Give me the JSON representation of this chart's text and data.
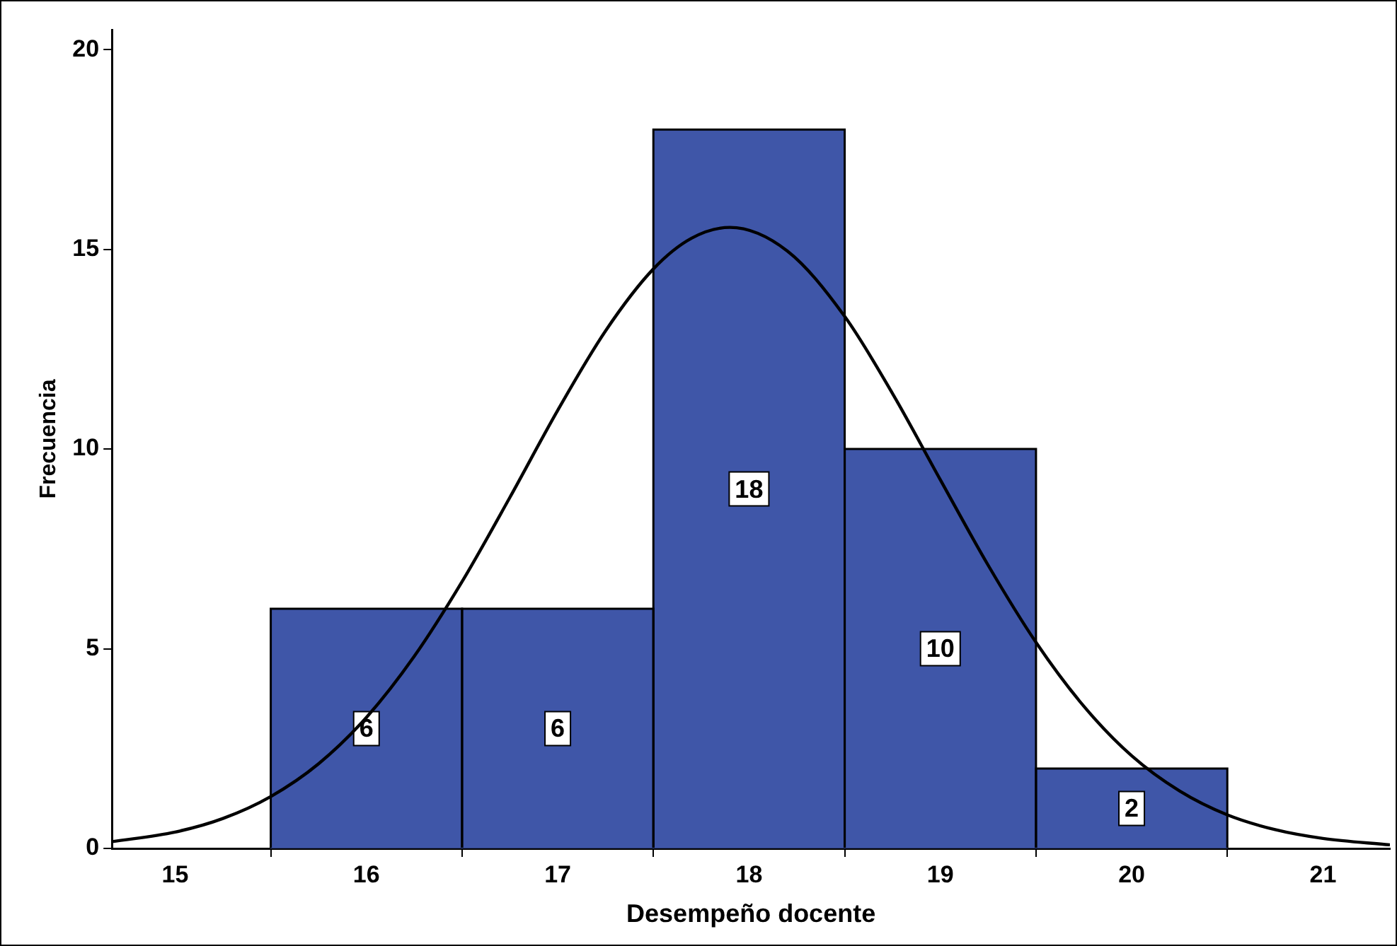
{
  "chart_data": {
    "type": "histogram",
    "xlabel": "Desempeño docente",
    "ylabel": "Frecuencia",
    "bins": [
      15.5,
      16.5,
      17.5,
      18.5,
      19.5,
      20.5
    ],
    "values": [
      6,
      6,
      18,
      10,
      2
    ],
    "color": "#3f56a8",
    "value_labels": [
      "6",
      "6",
      "18",
      "10",
      "2"
    ],
    "series": [
      {
        "type": "line",
        "color": "#000000",
        "x": [
          14.67,
          15,
          15.25,
          15.5,
          15.75,
          16,
          16.25,
          16.5,
          16.75,
          17,
          17.25,
          17.5,
          17.7,
          17.9,
          18.2,
          18.5,
          18.75,
          19,
          19.25,
          19.5,
          19.75,
          20,
          20.25,
          20.5,
          20.75,
          21,
          21.35
        ],
        "values": [
          0.17,
          0.41,
          0.75,
          1.3,
          2.12,
          3.28,
          4.81,
          6.68,
          8.79,
          10.97,
          12.96,
          14.51,
          15.28,
          15.55,
          14.96,
          13.32,
          11.39,
          9.23,
          7.09,
          5.16,
          3.56,
          2.32,
          1.44,
          0.84,
          0.47,
          0.25,
          0.09
        ]
      }
    ],
    "xlim": [
      14.67,
      21.35
    ],
    "xticks": [
      15,
      16,
      17,
      18,
      19,
      20,
      21
    ],
    "ylim": [
      0,
      20.5
    ],
    "yticks": [
      0,
      5,
      10,
      15,
      20
    ],
    "grid": false,
    "legend": false,
    "marker": "none"
  }
}
